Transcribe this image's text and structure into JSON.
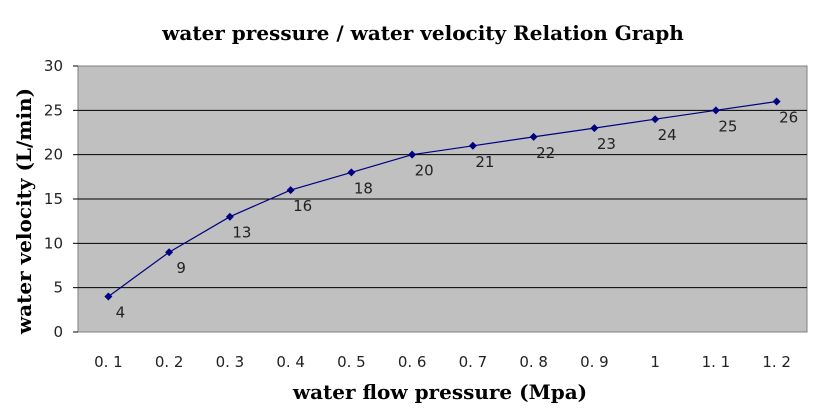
{
  "chart_data": {
    "type": "line",
    "title": "water pressure / water velocity Relation Graph",
    "xlabel": "water flow pressure (Mpa)",
    "ylabel": "water velocity (L/min)",
    "categories": [
      "0. 1",
      "0. 2",
      "0. 3",
      "0. 4",
      "0. 5",
      "0. 6",
      "0. 7",
      "0. 8",
      "0. 9",
      "1",
      "1. 1",
      "1. 2"
    ],
    "series": [
      {
        "values": [
          4,
          9,
          13,
          16,
          18,
          20,
          21,
          22,
          23,
          24,
          25,
          26
        ]
      }
    ],
    "data_labels": [
      "4",
      "9",
      "13",
      "16",
      "18",
      "20",
      "21",
      "22",
      "23",
      "24",
      "25",
      "26"
    ],
    "ylim": [
      0,
      30
    ],
    "yticks": [
      "0",
      "5",
      "10",
      "15",
      "20",
      "25",
      "30"
    ],
    "grid": true,
    "legend": "none",
    "colors": {
      "plot_background": "#c0c0c0",
      "line": "#000080",
      "marker": "#000080",
      "gridline": "#000000"
    }
  }
}
